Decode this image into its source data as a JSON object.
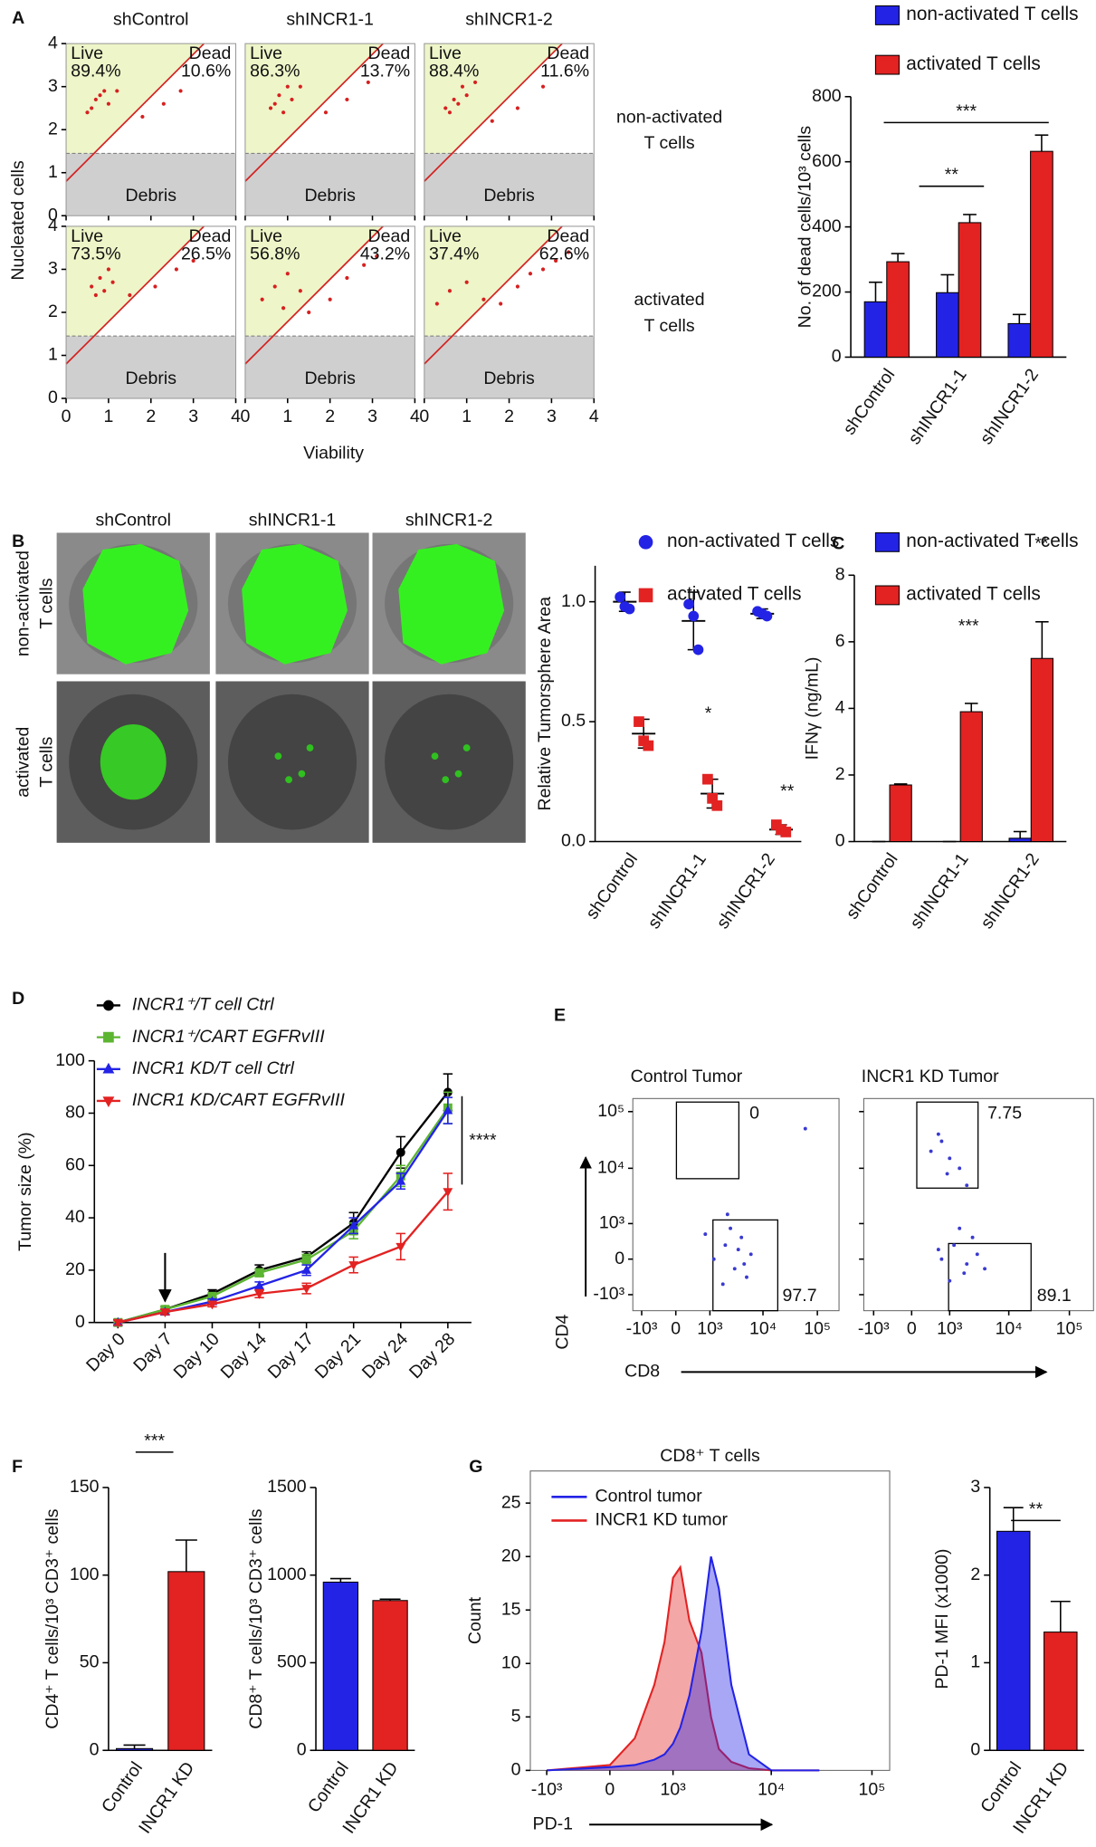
{
  "chart_data": [
    {
      "type": "flow",
      "label": "A",
      "columns": [
        "shControl",
        "shINCR1-1",
        "shINCR1-2"
      ],
      "rows": [
        [
          "non-activated",
          "T cells"
        ],
        [
          "activated",
          "T cells"
        ]
      ],
      "xlabel": "Viability",
      "ylabel": "Nucleated cells",
      "xlim": [
        0,
        4
      ],
      "ylim": [
        0,
        4
      ],
      "xticks": [
        0,
        1,
        2,
        3,
        4
      ],
      "yticks": [
        0,
        1,
        2,
        3,
        4
      ],
      "gate_names": [
        "Live",
        "Dead",
        "Debris"
      ],
      "live": [
        [
          "89.4%",
          "86.3%",
          "88.4%"
        ],
        [
          "73.5%",
          "56.8%",
          "37.4%"
        ]
      ],
      "dead": [
        [
          "10.6%",
          "13.7%",
          "11.6%"
        ],
        [
          "26.5%",
          "43.2%",
          "62.6%"
        ]
      ],
      "point_color": "#d62020",
      "points": [
        [
          {
            "x": [
              0.5,
              0.7,
              0.9,
              0.6,
              1.0,
              0.8,
              1.2,
              1.8,
              2.3,
              2.7
            ],
            "y": [
              2.4,
              2.7,
              2.9,
              2.5,
              2.6,
              2.8,
              2.9,
              2.3,
              2.6,
              2.9
            ]
          },
          {
            "x": [
              0.6,
              0.8,
              1.0,
              0.7,
              1.1,
              0.9,
              1.3,
              1.9,
              2.4,
              2.9
            ],
            "y": [
              2.5,
              2.8,
              3.0,
              2.6,
              2.7,
              2.4,
              3.0,
              2.4,
              2.7,
              3.1
            ]
          },
          {
            "x": [
              0.5,
              0.7,
              0.9,
              0.6,
              1.0,
              0.8,
              1.2,
              1.6,
              2.2,
              2.8
            ],
            "y": [
              2.5,
              2.7,
              3.0,
              2.4,
              2.8,
              2.6,
              3.1,
              2.2,
              2.5,
              3.0
            ]
          }
        ],
        [
          {
            "x": [
              0.6,
              0.8,
              1.0,
              0.7,
              1.1,
              0.9,
              1.5,
              2.1,
              2.6,
              3.0
            ],
            "y": [
              2.6,
              2.8,
              3.0,
              2.4,
              2.7,
              2.5,
              2.4,
              2.6,
              3.0,
              3.2
            ]
          },
          {
            "x": [
              0.4,
              0.7,
              1.0,
              1.3,
              0.9,
              1.5,
              2.0,
              2.4,
              2.8,
              3.1
            ],
            "y": [
              2.3,
              2.6,
              2.9,
              2.5,
              2.1,
              2.0,
              2.3,
              2.8,
              3.1,
              3.3
            ]
          },
          {
            "x": [
              0.3,
              0.6,
              1.0,
              1.4,
              1.8,
              2.2,
              2.5,
              2.8,
              3.1,
              3.4
            ],
            "y": [
              2.2,
              2.5,
              2.7,
              2.3,
              2.2,
              2.6,
              2.9,
              3.0,
              3.2,
              3.4
            ]
          }
        ]
      ]
    },
    {
      "type": "bar",
      "categories": [
        "shControl",
        "shINCR1-1",
        "shINCR1-2"
      ],
      "series": [
        {
          "name": "non-activated T cells",
          "color": "#2323e6",
          "values": [
            170,
            198,
            103
          ],
          "errors": [
            60,
            55,
            28
          ]
        },
        {
          "name": "activated T cells",
          "color": "#e32222",
          "values": [
            293,
            413,
            632
          ],
          "errors": [
            25,
            25,
            50
          ]
        }
      ],
      "ylabel": "No. of dead cells/10³ cells",
      "ylim": [
        0,
        800
      ],
      "yticks": [
        0,
        200,
        400,
        600,
        800
      ],
      "annotations": [
        "**",
        "***"
      ]
    },
    {
      "type": "images",
      "label": "B",
      "columns": [
        "shControl",
        "shINCR1-1",
        "shINCR1-2"
      ],
      "rows": [
        [
          "non-activated",
          "T cells"
        ],
        [
          "activated",
          "T cells"
        ]
      ]
    },
    {
      "type": "dot",
      "categories": [
        "shControl",
        "shINCR1-1",
        "shINCR1-2"
      ],
      "series": [
        {
          "name": "non-activated T cells",
          "color": "#2323e6",
          "marker": "circle",
          "values": [
            1.0,
            0.92,
            0.95
          ],
          "errors": [
            0.04,
            0.12,
            0.02
          ],
          "points": [
            [
              1.02,
              0.98,
              0.97
            ],
            [
              0.99,
              0.94,
              0.8
            ],
            [
              0.96,
              0.95,
              0.94
            ]
          ]
        },
        {
          "name": "activated T cells",
          "color": "#e32222",
          "marker": "square",
          "values": [
            0.45,
            0.2,
            0.05
          ],
          "errors": [
            0.06,
            0.06,
            0.02
          ],
          "points": [
            [
              0.5,
              0.42,
              0.4
            ],
            [
              0.26,
              0.18,
              0.15
            ],
            [
              0.07,
              0.05,
              0.04
            ]
          ]
        }
      ],
      "ylabel": "Relative Tumorsphere Area",
      "ylim": [
        0,
        1.15
      ],
      "yticks": [
        {
          "value": 0,
          "label": "0.0"
        },
        {
          "value": 0.5,
          "label": "0.5"
        },
        {
          "value": 1,
          "label": "1.0"
        }
      ],
      "annotations": [
        "*",
        "**"
      ]
    },
    {
      "type": "bar",
      "label": "C",
      "categories": [
        "shControl",
        "shINCR1-1",
        "shINCR1-2"
      ],
      "series": [
        {
          "name": "non-activated T cells",
          "color": "#2323e6",
          "values": [
            0,
            0,
            0.1
          ],
          "errors": [
            0,
            0,
            0.2
          ]
        },
        {
          "name": "activated T cells",
          "color": "#e32222",
          "values": [
            1.7,
            3.9,
            5.5
          ],
          "errors": [
            0.03,
            0.25,
            1.1
          ]
        }
      ],
      "ylabel": "IFNγ (ng/mL)",
      "ylim": [
        0,
        8
      ],
      "yticks": [
        0,
        2,
        4,
        6,
        8
      ],
      "annotations": [
        "***",
        "**"
      ]
    },
    {
      "type": "line",
      "label": "D",
      "categories": [
        "Day 0",
        "Day 7",
        "Day 10",
        "Day 14",
        "Day 17",
        "Day 21",
        "Day 24",
        "Day 28"
      ],
      "series": [
        {
          "name": "INCR1⁺/T cell Ctrl",
          "color": "#000000",
          "marker": "circle",
          "values": [
            0,
            5,
            11,
            20,
            25,
            38,
            65,
            88
          ],
          "errors": [
            1,
            1,
            1.5,
            2,
            2,
            4,
            6,
            7
          ]
        },
        {
          "name": "INCR1⁺/CART EGFRvIII",
          "color": "#5cb531",
          "marker": "square",
          "values": [
            0,
            5,
            10,
            19,
            24,
            35,
            56,
            82
          ],
          "errors": [
            1,
            1,
            1,
            1.5,
            2,
            3,
            4,
            6
          ]
        },
        {
          "name": "INCR1 KD/T cell Ctrl",
          "color": "#2323e6",
          "marker": "triangle",
          "values": [
            0,
            4,
            8,
            14,
            20,
            37,
            54,
            81
          ],
          "errors": [
            1,
            1,
            1,
            1.5,
            2,
            3,
            3,
            5
          ]
        },
        {
          "name": "INCR1 KD/CART EGFRvIII",
          "color": "#e32222",
          "marker": "triangle-down",
          "values": [
            0,
            4,
            7,
            11,
            13,
            22,
            29,
            50
          ],
          "errors": [
            1,
            1,
            1,
            1.5,
            2,
            3,
            5,
            7
          ]
        }
      ],
      "ylabel": "Tumor size (%)",
      "ylim": [
        0,
        100
      ],
      "yticks": [
        0,
        20,
        40,
        60,
        80,
        100
      ],
      "annotations": [
        "****"
      ]
    },
    {
      "type": "cyto",
      "label": "E",
      "titles": [
        "Control Tumor",
        "INCR1 KD Tumor"
      ],
      "xlabel": "CD8",
      "ylabel": "CD4",
      "xlim": [
        -1500,
        250000
      ],
      "ylim": [
        -2000,
        170000
      ],
      "xticks": [
        {
          "value": -1000,
          "label": "-10³"
        },
        0,
        {
          "value": 1000,
          "label": "10³"
        },
        {
          "value": 10000,
          "label": "10⁴"
        },
        {
          "value": 100000,
          "label": "10⁵"
        }
      ],
      "yticks": [
        {
          "value": -1000,
          "label": "-10³"
        },
        0,
        {
          "value": 1000,
          "label": "10³"
        },
        {
          "value": 10000,
          "label": "10⁴"
        },
        {
          "value": 100000,
          "label": "10⁵"
        }
      ],
      "gate_values": [
        [
          0,
          97.7
        ],
        [
          7.75,
          89.1
        ]
      ],
      "point_color": "#3a3ad0",
      "points": [
        {
          "x": [
            1200,
            2000,
            3000,
            4000,
            2500,
            5000,
            1800,
            3500,
            6000,
            2200,
            800,
            4500,
            60000
          ],
          "y": [
            0,
            300,
            -200,
            500,
            800,
            -400,
            -600,
            200,
            100,
            1500,
            600,
            -100,
            50000
          ]
        },
        {
          "x": [
            700,
            1200,
            1800,
            2500,
            1000,
            3000,
            1500,
            2000,
            600,
            4000,
            400,
            700,
            1000,
            1500,
            600,
            900,
            2000
          ],
          "y": [
            0,
            300,
            -300,
            500,
            -500,
            100,
            800,
            -100,
            200,
            -200,
            20000,
            30000,
            15000,
            10000,
            40000,
            8000,
            5000
          ]
        }
      ]
    },
    {
      "type": "bar",
      "label": "F",
      "categories": [
        "Control",
        "INCR1 KD"
      ],
      "values": [
        1,
        102
      ],
      "errors": [
        2,
        18
      ],
      "colors": [
        "#2323e6",
        "#e32222"
      ],
      "ylabel": "CD4⁺ T cells/10³ CD3⁺ cells",
      "ylim": [
        0,
        150
      ],
      "yticks": [
        0,
        50,
        100,
        150
      ],
      "annotations": [
        "***"
      ]
    },
    {
      "type": "bar",
      "categories": [
        "Control",
        "INCR1 KD"
      ],
      "values": [
        960,
        855
      ],
      "errors": [
        20,
        8
      ],
      "colors": [
        "#2323e6",
        "#e32222"
      ],
      "ylabel": "CD8⁺ T cells/10³ CD3⁺ cells",
      "ylim": [
        0,
        1500
      ],
      "yticks": [
        0,
        500,
        1000,
        1500
      ]
    },
    {
      "type": "area",
      "label": "G",
      "title": "CD8⁺ T cells",
      "xlabel": "PD-1",
      "ylabel": "Count",
      "x": [
        -1000,
        0,
        300,
        600,
        800,
        1000,
        1200,
        1500,
        2000,
        2500,
        3000,
        4000,
        6000,
        10000,
        30000
      ],
      "series": [
        {
          "name": "Control tumor",
          "color": "#2323e6",
          "values": [
            0,
            0.3,
            0.5,
            1,
            1.5,
            2.5,
            4,
            7,
            13,
            20,
            17,
            8,
            1.5,
            0,
            0
          ]
        },
        {
          "name": "INCR1 KD tumor",
          "color": "#e32222",
          "values": [
            0,
            0.5,
            3,
            8,
            12,
            18,
            19,
            14,
            11,
            5,
            2,
            0.8,
            0.2,
            0,
            0
          ]
        }
      ],
      "xlim": [
        -1500,
        150000
      ],
      "ylim": [
        0,
        28
      ],
      "xticks": [
        {
          "value": -1000,
          "label": "-10³"
        },
        0,
        {
          "value": 1000,
          "label": "10³"
        },
        {
          "value": 10000,
          "label": "10⁴"
        },
        {
          "value": 100000,
          "label": "10⁵"
        }
      ],
      "yticks": [
        0,
        5,
        10,
        15,
        20,
        25
      ]
    },
    {
      "type": "bar",
      "categories": [
        "Control",
        "INCR1 KD"
      ],
      "values": [
        2.5,
        1.35
      ],
      "errors": [
        0.27,
        0.35
      ],
      "colors": [
        "#2323e6",
        "#e32222"
      ],
      "ylabel": "PD-1 MFI (x1000)",
      "ylim": [
        0,
        3
      ],
      "yticks": [
        0,
        1,
        2,
        3
      ],
      "annotations": [
        "**"
      ]
    }
  ]
}
